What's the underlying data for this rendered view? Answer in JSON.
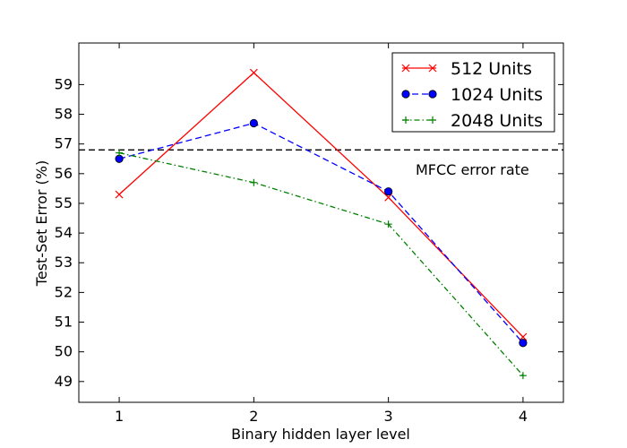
{
  "chart_data": {
    "type": "line",
    "title": "",
    "xlabel": "Binary hidden layer level",
    "ylabel": "Test-Set Error (%)",
    "xlim": [
      0.7,
      4.3
    ],
    "ylim": [
      48.3,
      60.4
    ],
    "xticks": [
      1,
      2,
      3,
      4
    ],
    "yticks": [
      49,
      50,
      51,
      52,
      53,
      54,
      55,
      56,
      57,
      58,
      59
    ],
    "grid": false,
    "legend_position": "top-right",
    "series": [
      {
        "name": "512 Units",
        "color": "#ff0000",
        "style": "solid",
        "marker": "x",
        "x": [
          1,
          2,
          3,
          4
        ],
        "y": [
          55.3,
          59.4,
          55.2,
          50.5
        ]
      },
      {
        "name": "1024 Units",
        "color": "#0000ff",
        "style": "dashed",
        "marker": "circle",
        "x": [
          1,
          2,
          3,
          4
        ],
        "y": [
          56.5,
          57.7,
          55.4,
          50.3
        ]
      },
      {
        "name": "2048 Units",
        "color": "#008000",
        "style": "dashdot",
        "marker": "plus",
        "x": [
          1,
          2,
          3,
          4
        ],
        "y": [
          56.7,
          55.7,
          54.3,
          49.2
        ]
      }
    ],
    "reference_line": {
      "y": 56.8,
      "color": "#000000",
      "style": "dashed",
      "label": "MFCC error rate"
    }
  }
}
